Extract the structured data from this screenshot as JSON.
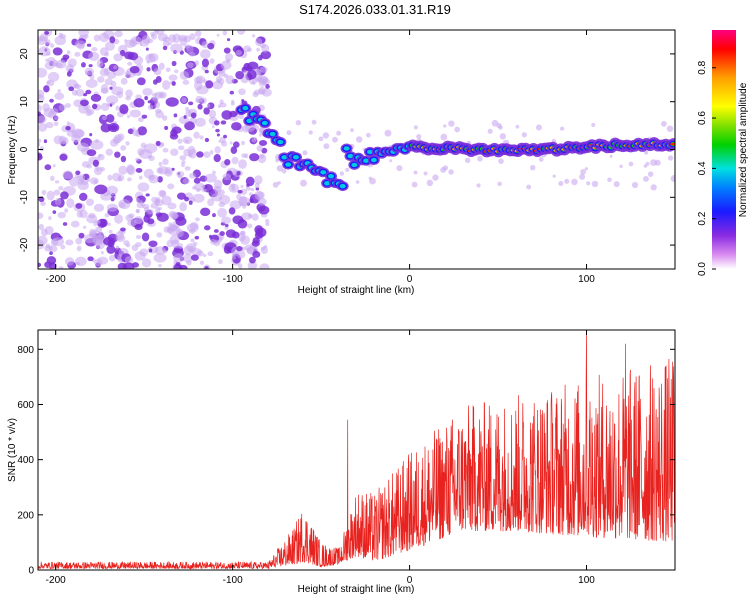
{
  "title": "S174.2026.033.01.31.R19",
  "colors": {
    "trace": "#e8231f",
    "blob": "#7a2ed6",
    "blob_light": "#c9a8f0"
  },
  "chart_data": [
    {
      "type": "heatmap",
      "name": "spectrogram",
      "xlabel": "Height of straight line (km)",
      "ylabel": "Frequency (Hz)",
      "xlim": [
        -210,
        150
      ],
      "ylim": [
        -25,
        25
      ],
      "xticks": [
        -200,
        -100,
        0,
        100
      ],
      "yticks": [
        -20,
        -10,
        0,
        10,
        20
      ],
      "noise_region_x": [
        -210,
        -80
      ],
      "ridge": [
        {
          "x": -95,
          "y": 8
        },
        {
          "x": -85,
          "y": 6
        },
        {
          "x": -75,
          "y": 2
        },
        {
          "x": -70,
          "y": -2
        },
        {
          "x": -60,
          "y": -3
        },
        {
          "x": -55,
          "y": -5
        },
        {
          "x": -45,
          "y": -6
        },
        {
          "x": -38,
          "y": -8
        },
        {
          "x": -35,
          "y": 1
        },
        {
          "x": -30,
          "y": -3
        },
        {
          "x": -20,
          "y": -1
        },
        {
          "x": 0,
          "y": 0.5
        },
        {
          "x": 40,
          "y": 0
        },
        {
          "x": 80,
          "y": 0
        },
        {
          "x": 120,
          "y": 1
        },
        {
          "x": 150,
          "y": 1
        }
      ],
      "colorbar": {
        "label": "Normalized spectral amplitude",
        "range": [
          0.0,
          0.95
        ],
        "ticks": [
          0.0,
          0.2,
          0.4,
          0.6,
          0.8
        ],
        "tick_labels": [
          "0.0",
          "0.2",
          "0.4",
          "0.6",
          "0.8"
        ]
      }
    },
    {
      "type": "line",
      "name": "snr",
      "xlabel": "Height of straight line (km)",
      "ylabel": "SNR (10 * v/v)",
      "xlim": [
        -210,
        150
      ],
      "ylim": [
        0,
        870
      ],
      "xticks": [
        -200,
        -100,
        0,
        100
      ],
      "yticks": [
        0,
        200,
        400,
        600,
        800
      ],
      "envelope": [
        {
          "x": -210,
          "lo": 5,
          "hi": 30
        },
        {
          "x": -80,
          "lo": 5,
          "hi": 30
        },
        {
          "x": -65,
          "lo": 20,
          "hi": 160
        },
        {
          "x": -60,
          "lo": 30,
          "hi": 240
        },
        {
          "x": -50,
          "lo": 10,
          "hi": 100
        },
        {
          "x": -40,
          "lo": 20,
          "hi": 80
        },
        {
          "x": -30,
          "lo": 50,
          "hi": 300
        },
        {
          "x": -20,
          "lo": 30,
          "hi": 280
        },
        {
          "x": 0,
          "lo": 70,
          "hi": 430
        },
        {
          "x": 30,
          "lo": 140,
          "hi": 600
        },
        {
          "x": 60,
          "lo": 140,
          "hi": 640
        },
        {
          "x": 100,
          "lo": 120,
          "hi": 700
        },
        {
          "x": 150,
          "lo": 100,
          "hi": 780
        }
      ],
      "peaks": [
        {
          "x": -35,
          "y": 545
        },
        {
          "x": 100,
          "y": 860
        },
        {
          "x": 122,
          "y": 820
        }
      ]
    }
  ]
}
